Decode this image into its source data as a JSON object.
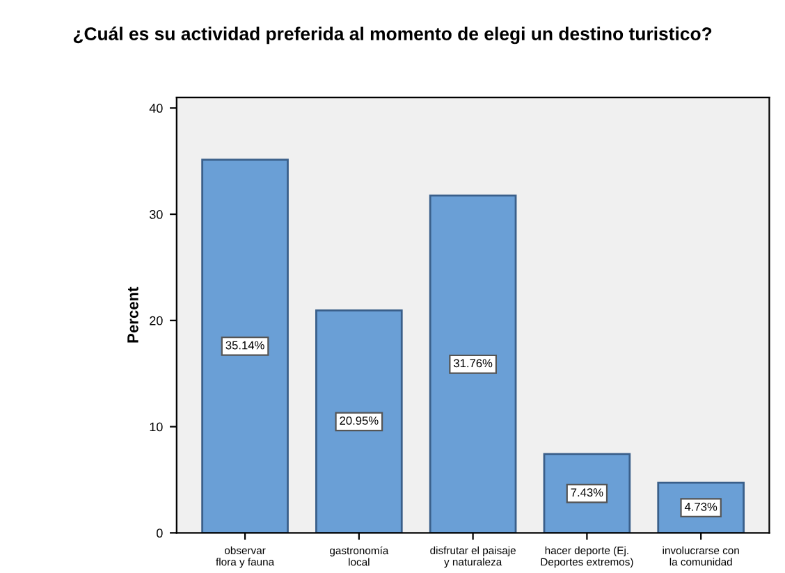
{
  "chart_data": {
    "type": "bar",
    "title": "¿Cuál es su actividad preferida al momento de elegi un destino turistico?",
    "ylabel": "Percent",
    "categories": [
      "observar flora y fauna",
      "gastronomía local",
      "disfrutar el paisaje y naturaleza",
      "hacer deporte (Ej. Deportes extremos)",
      "involucrarse con la comunidad"
    ],
    "values": [
      35.14,
      20.95,
      31.76,
      7.43,
      4.73
    ],
    "value_labels": [
      "35.14%",
      "20.95%",
      "31.76%",
      "7.43%",
      "4.73%"
    ],
    "color": "#6a9fd6",
    "ylim": [
      0,
      41
    ],
    "yticks": [
      0,
      10,
      20,
      30,
      40
    ],
    "grid": false
  }
}
